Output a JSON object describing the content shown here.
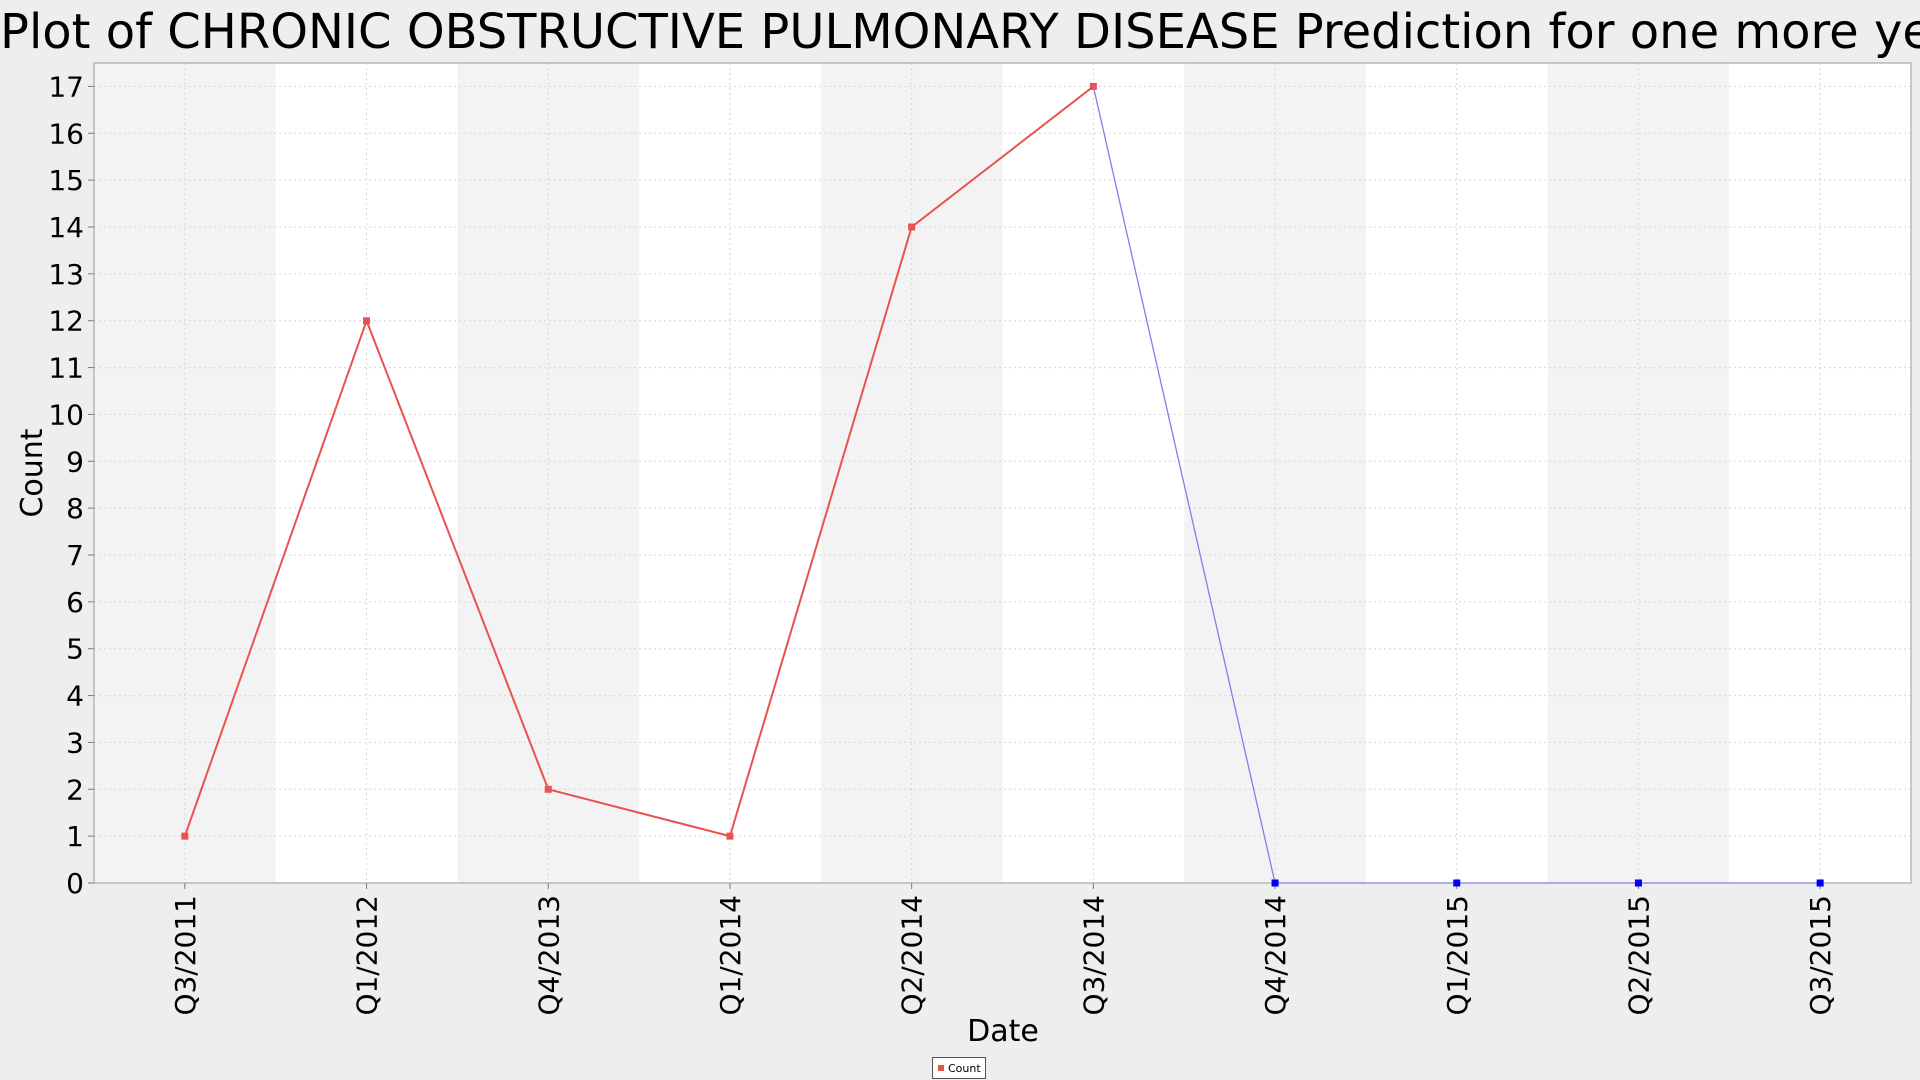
{
  "chart_data": {
    "type": "line",
    "title": "Plot of CHRONIC OBSTRUCTIVE PULMONARY DISEASE Prediction for one more year",
    "xlabel": "Date",
    "ylabel": "Count",
    "categories": [
      "Q3/2011",
      "Q1/2012",
      "Q4/2013",
      "Q1/2014",
      "Q2/2014",
      "Q3/2014",
      "Q4/2014",
      "Q1/2015",
      "Q2/2015",
      "Q3/2015"
    ],
    "series": [
      {
        "name": "Count",
        "color": "#e8534f",
        "values": [
          1,
          12,
          2,
          1,
          14,
          17,
          null,
          null,
          null,
          null
        ]
      },
      {
        "color": "#0000ee",
        "line_color": "#8080e6",
        "values": [
          null,
          null,
          null,
          null,
          null,
          17,
          0,
          0,
          0,
          0
        ]
      }
    ],
    "ylim": [
      0,
      17.5
    ],
    "yticks": [
      0,
      1,
      2,
      3,
      4,
      5,
      6,
      7,
      8,
      9,
      10,
      11,
      12,
      13,
      14,
      15,
      16,
      17
    ],
    "grid": true,
    "legend_position": "bottom-center",
    "band_colors": [
      "#f3f3f3",
      "#ffffff"
    ],
    "plot_background": "#ffffff",
    "page_background": "#eeeeee"
  },
  "legend": {
    "label": "Count"
  }
}
